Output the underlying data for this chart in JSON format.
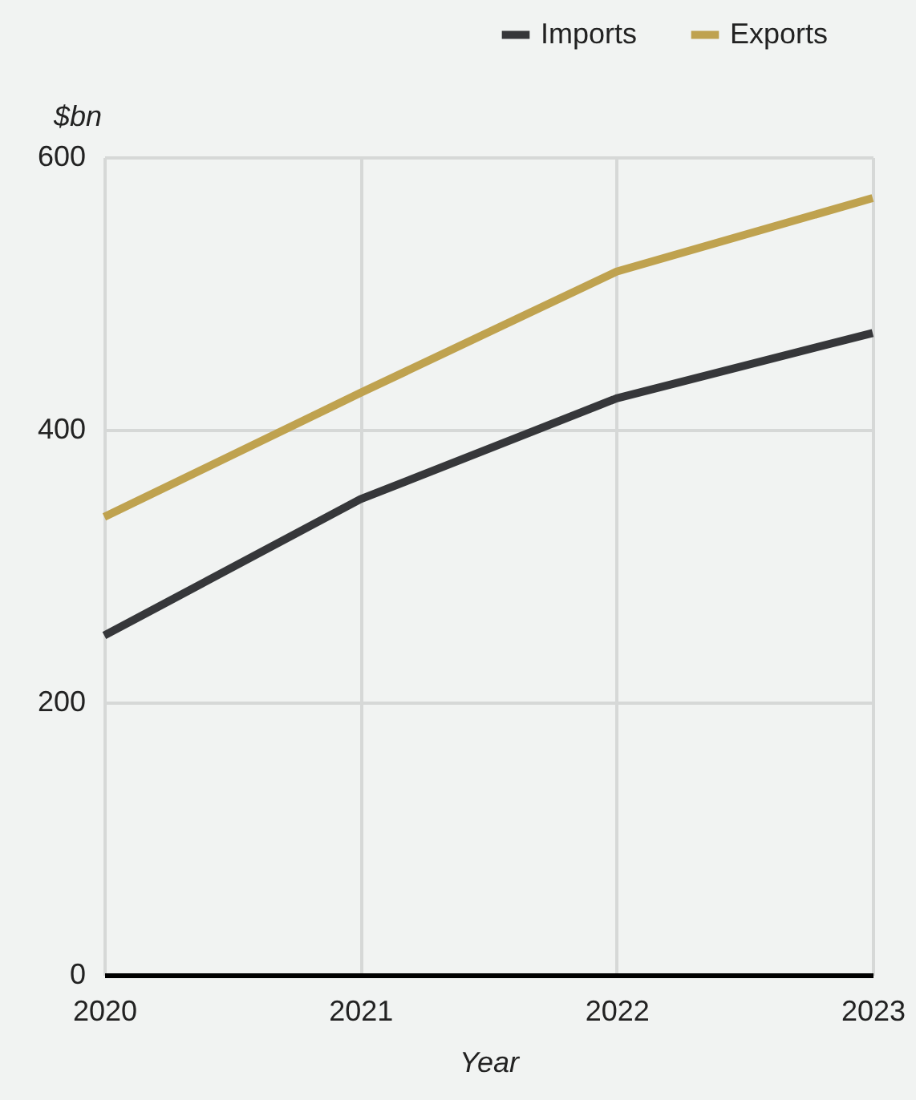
{
  "chart_data": {
    "type": "line",
    "xlabel": "Year",
    "ylabel": "$bn",
    "x": [
      2020,
      2021,
      2022,
      2023
    ],
    "series": [
      {
        "name": "Imports",
        "color": "#36373a",
        "values": [
          249,
          349,
          423,
          471
        ]
      },
      {
        "name": "Exports",
        "color": "#bfa24f",
        "values": [
          336,
          427,
          516,
          570
        ]
      }
    ],
    "xlim": [
      2020,
      2023
    ],
    "xticks": [
      2020,
      2021,
      2022,
      2023
    ],
    "ylim": [
      0,
      600
    ],
    "yticks": [
      0,
      200,
      400,
      600
    ],
    "grid": true,
    "legend": "top right",
    "line_style": "solid",
    "marker": "none"
  }
}
